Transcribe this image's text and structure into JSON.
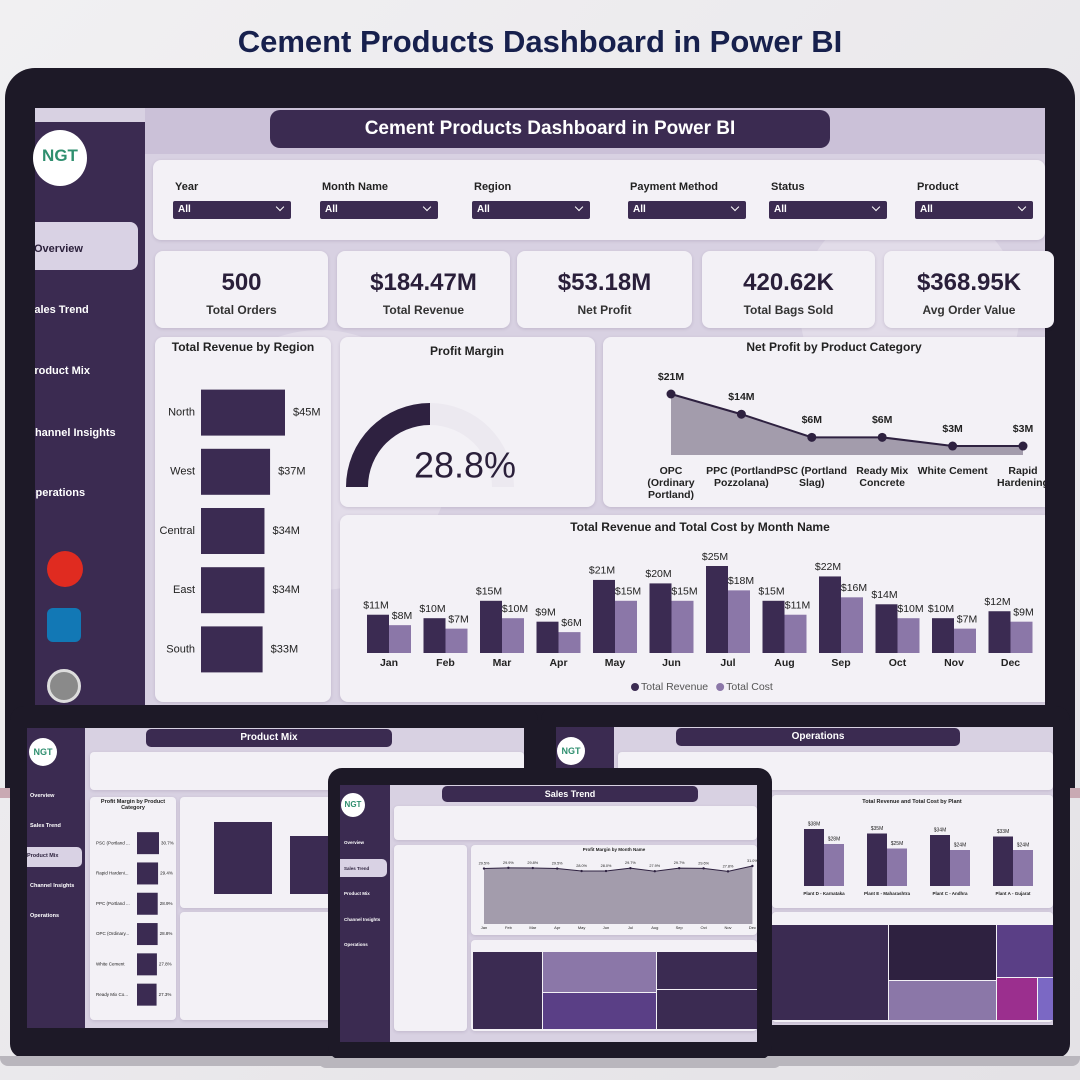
{
  "title": "Cement Products Dashboard in Power BI",
  "dashboard": {
    "logo": "NGT",
    "header": "Cement Products Dashboard in Power BI",
    "nav": [
      "Overview",
      "Sales Trend",
      "Product Mix",
      "Channel Insights",
      "Operations"
    ],
    "filters": [
      {
        "label": "Year",
        "value": "All"
      },
      {
        "label": "Month Name",
        "value": "All"
      },
      {
        "label": "Region",
        "value": "All"
      },
      {
        "label": "Payment Method",
        "value": "All"
      },
      {
        "label": "Status",
        "value": "All"
      },
      {
        "label": "Product",
        "value": "All"
      }
    ],
    "kpis": [
      {
        "value": "500",
        "label": "Total Orders"
      },
      {
        "value": "$184.47M",
        "label": "Total Revenue"
      },
      {
        "value": "$53.18M",
        "label": "Net Profit"
      },
      {
        "value": "420.62K",
        "label": "Total Bags Sold"
      },
      {
        "value": "$368.95K",
        "label": "Avg Order Value"
      }
    ]
  },
  "thumbnails": [
    {
      "header": "Product Mix"
    },
    {
      "header": "Sales Trend"
    },
    {
      "header": "Operations"
    }
  ],
  "chart_data": [
    {
      "type": "hbar",
      "title": "Total Revenue by Region",
      "categories": [
        "North",
        "West",
        "Central",
        "East",
        "South"
      ],
      "values": [
        45,
        37,
        34,
        34,
        33
      ],
      "value_labels": [
        "$45M",
        "$37M",
        "$34M",
        "$34M",
        "$33M"
      ],
      "color": "#3b2b52"
    },
    {
      "type": "gauge",
      "title": "Profit Margin",
      "value": 28.8,
      "value_label": "28.8%",
      "ylim": [
        0,
        57.6
      ],
      "color": "#2e2140"
    },
    {
      "type": "area",
      "title": "Net Profit by Product Category",
      "categories": [
        "OPC (Ordinary Portland)",
        "PPC (Portland Pozzolana)",
        "PSC (Portland Slag)",
        "Ready Mix Concrete",
        "White Cement",
        "Rapid Hardening"
      ],
      "values": [
        21,
        14,
        6,
        6,
        3,
        3
      ],
      "value_labels": [
        "$21M",
        "$14M",
        "$6M",
        "$6M",
        "$3M",
        "$3M"
      ],
      "color": "#2e2140",
      "fill": "#a39cac"
    },
    {
      "type": "grouped",
      "title": "Total Revenue and Total Cost by Month Name",
      "categories": [
        "Jan",
        "Feb",
        "Mar",
        "Apr",
        "May",
        "Jun",
        "Jul",
        "Aug",
        "Sep",
        "Oct",
        "Nov",
        "Dec"
      ],
      "series": [
        {
          "name": "Total Revenue",
          "color": "#3b2b52",
          "values": [
            11,
            10,
            15,
            9,
            21,
            20,
            25,
            15,
            22,
            14,
            10,
            12
          ],
          "value_labels": [
            "$11M",
            "$10M",
            "$15M",
            "$9M",
            "$21M",
            "$20M",
            "$25M",
            "$15M",
            "$22M",
            "$14M",
            "$10M",
            "$12M"
          ]
        },
        {
          "name": "Total Cost",
          "color": "#8b77a8",
          "values": [
            8,
            7,
            10,
            6,
            15,
            15,
            18,
            11,
            16,
            10,
            7,
            9
          ],
          "value_labels": [
            "$8M",
            "$7M",
            "$10M",
            "$6M",
            "$15M",
            "$15M",
            "$18M",
            "$11M",
            "$16M",
            "$10M",
            "$7M",
            "$9M"
          ]
        }
      ],
      "legend": "bottom"
    },
    {
      "type": "hbar",
      "title": "Profit Margin by Product Category",
      "categories": [
        "PSC (Portland ...",
        "Rapid Hardeni...",
        "PPC (Portland ...",
        "OPC (Ordinary...",
        "White Cement",
        "Ready Mix Co..."
      ],
      "values": [
        30.7,
        29.4,
        28.9,
        28.8,
        27.8,
        27.3
      ],
      "value_labels": [
        "30.7%",
        "29.4%",
        "28.9%",
        "28.8%",
        "27.8%",
        "27.3%"
      ],
      "color": "#3b2b52"
    },
    {
      "type": "area",
      "title": "Profit Margin by Month Name",
      "categories": [
        "Jan",
        "Feb",
        "Mar",
        "Apr",
        "May",
        "Jun",
        "Jul",
        "Aug",
        "Sep",
        "Oct",
        "Nov",
        "Dec"
      ],
      "values": [
        29.5,
        29.9,
        29.8,
        29.5,
        28.0,
        28.0,
        29.7,
        27.9,
        29.7,
        29.6,
        27.8,
        31.0
      ],
      "value_labels": [
        "29.5%",
        "29.9%",
        "29.8%",
        "29.5%",
        "28.0%",
        "28.0%",
        "29.7%",
        "27.9%",
        "29.7%",
        "29.6%",
        "27.8%",
        "31.0%"
      ],
      "color": "#2e2140",
      "fill": "#a39cac"
    },
    {
      "type": "grouped",
      "title": "Total Revenue and Total Cost by Plant",
      "categories": [
        "Plant D - Karnataka",
        "Plant E - Maharashtra",
        "Plant C - Andhra",
        "Plant A - Gujarat"
      ],
      "series": [
        {
          "name": "Total Revenue",
          "color": "#3b2b52",
          "values": [
            38,
            35,
            34,
            33
          ],
          "value_labels": [
            "$38M",
            "$35M",
            "$34M",
            "$33M"
          ]
        },
        {
          "name": "Total Cost",
          "color": "#8b77a8",
          "values": [
            28,
            25,
            24,
            24
          ],
          "value_labels": [
            "$28M",
            "$25M",
            "$24M",
            "$24M"
          ]
        }
      ]
    }
  ]
}
